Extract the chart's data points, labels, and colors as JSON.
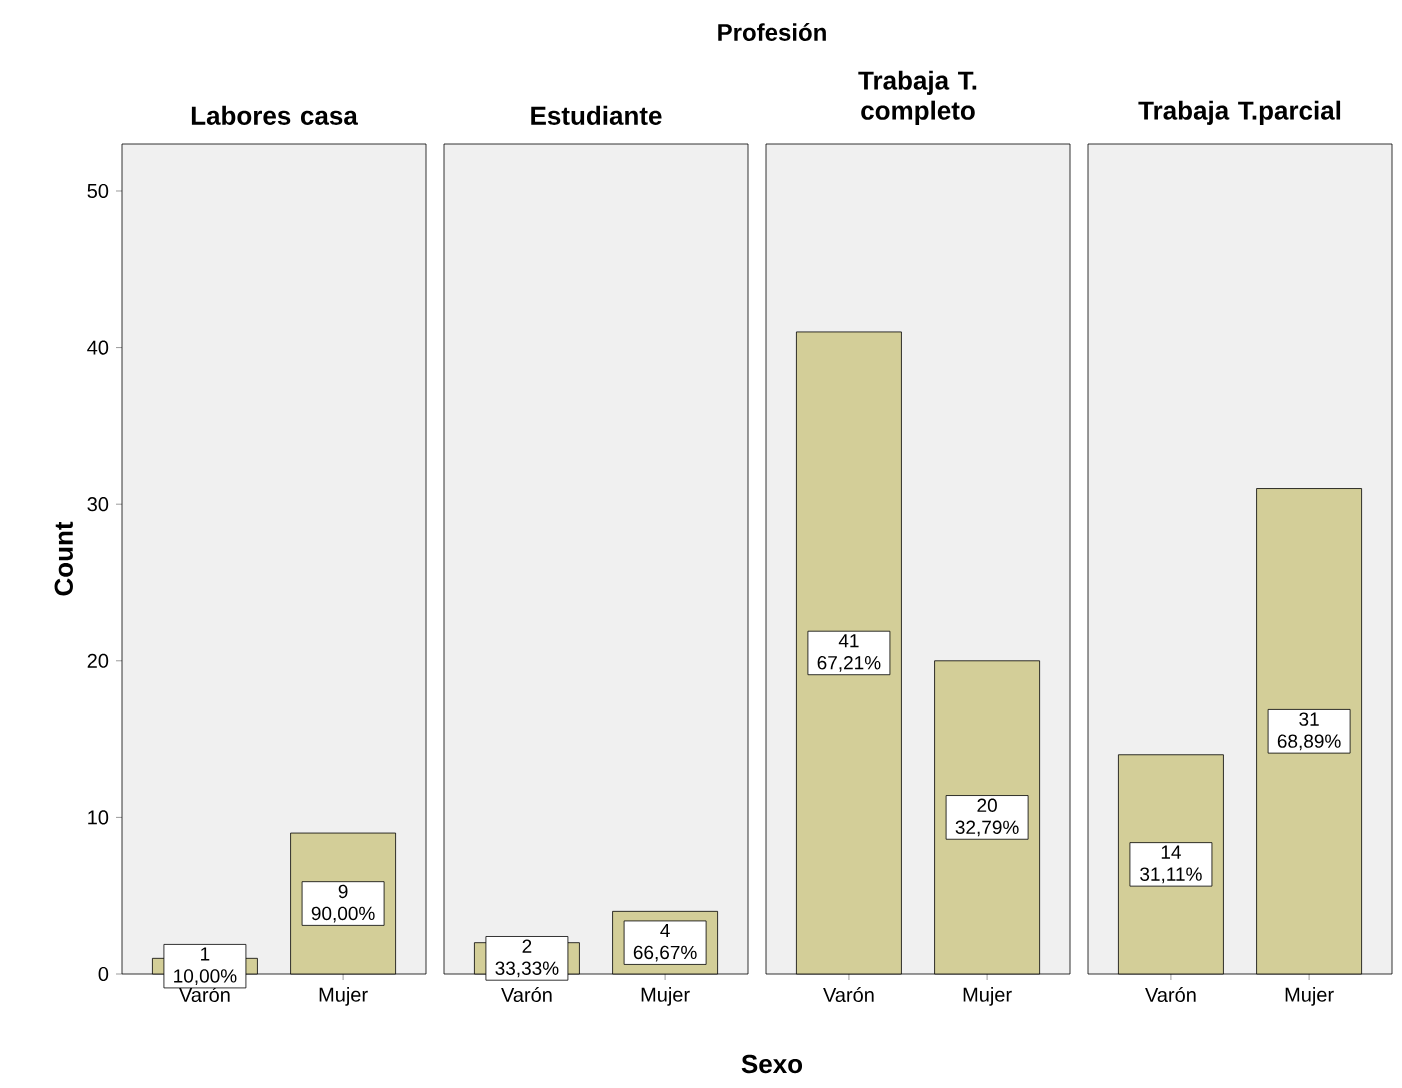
{
  "chart_data": [
    {
      "type": "bar",
      "title": "Labores casa",
      "categories": [
        "Varón",
        "Mujer"
      ],
      "values": [
        1,
        9
      ],
      "color": "#d3ce98",
      "value_labels": [
        "1 10,00%",
        "9 90,00%"
      ],
      "ylim": [
        0,
        53
      ],
      "yticks": [
        0,
        10,
        20,
        30,
        40,
        50
      ],
      "ylabel": "Count"
    },
    {
      "type": "bar",
      "title": "Estudiante",
      "categories": [
        "Varón",
        "Mujer"
      ],
      "values": [
        2,
        4
      ],
      "color": "#d3ce98",
      "value_labels": [
        "2 33,33%",
        "4 66,67%"
      ],
      "ylim": [
        0,
        53
      ],
      "tick_labels": "x"
    },
    {
      "type": "bar",
      "title": "Trabaja T. completo",
      "categories": [
        "Varón",
        "Mujer"
      ],
      "values": [
        41,
        20
      ],
      "color": "#d3ce98",
      "value_labels": [
        "41 67,21%",
        "20 32,79%"
      ],
      "ylim": [
        0,
        53
      ],
      "tick_labels": "x",
      "xlabel": "Sexo",
      "annotations": [
        "Profesión"
      ]
    },
    {
      "type": "bar",
      "title": "Trabaja T.parcial",
      "categories": [
        "Varón",
        "Mujer"
      ],
      "values": [
        14,
        31
      ],
      "color": "#d3ce98",
      "value_labels": [
        "14 31,11%",
        "31 68,89%"
      ],
      "ylim": [
        0,
        53
      ],
      "tick_labels": "x"
    }
  ]
}
